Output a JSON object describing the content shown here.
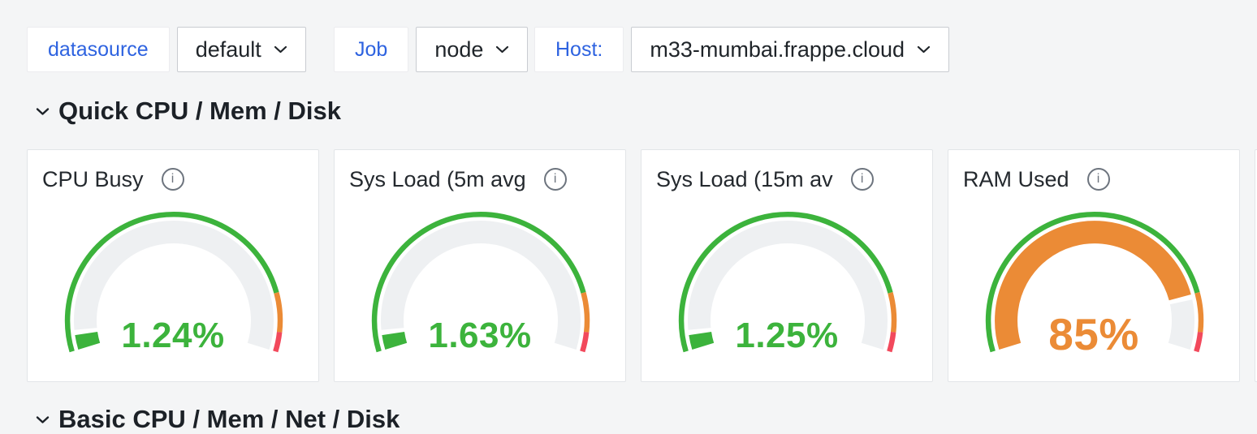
{
  "filters": [
    {
      "label": "datasource",
      "value": "default"
    },
    {
      "label": "Job",
      "value": "node"
    },
    {
      "label": "Host:",
      "value": "m33-mumbai.frappe.cloud"
    }
  ],
  "sections": {
    "quick": {
      "title": "Quick CPU / Mem / Disk"
    },
    "basic": {
      "title": "Basic CPU / Mem / Net / Disk"
    }
  },
  "panels": [
    {
      "title": "CPU Busy",
      "display": "1.24%",
      "value": 1.24,
      "min": 0,
      "max": 100,
      "unit": "%",
      "color": "green"
    },
    {
      "title": "Sys Load (5m avg",
      "display": "1.63%",
      "value": 1.63,
      "min": 0,
      "max": 100,
      "unit": "%",
      "color": "green"
    },
    {
      "title": "Sys Load (15m av",
      "display": "1.25%",
      "value": 1.25,
      "min": 0,
      "max": 100,
      "unit": "%",
      "color": "green"
    },
    {
      "title": "RAM Used",
      "display": "85%",
      "value": 85,
      "min": 0,
      "max": 100,
      "unit": "%",
      "color": "orange"
    }
  ],
  "gauge_thresholds": {
    "orange_at": 85,
    "red_at": 95
  },
  "colors": {
    "green": "#3cb33c",
    "orange": "#eb8b36",
    "red": "#f2495c",
    "track": "#eef0f2",
    "blue": "#2e63e0"
  },
  "chart_data": [
    {
      "type": "gauge",
      "title": "CPU Busy",
      "value": 1.24,
      "unit": "%",
      "min": 0,
      "max": 100,
      "thresholds": [
        {
          "from": 0,
          "color": "green"
        },
        {
          "from": 85,
          "color": "orange"
        },
        {
          "from": 95,
          "color": "red"
        }
      ]
    },
    {
      "type": "gauge",
      "title": "Sys Load (5m avg",
      "value": 1.63,
      "unit": "%",
      "min": 0,
      "max": 100,
      "thresholds": [
        {
          "from": 0,
          "color": "green"
        },
        {
          "from": 85,
          "color": "orange"
        },
        {
          "from": 95,
          "color": "red"
        }
      ]
    },
    {
      "type": "gauge",
      "title": "Sys Load (15m av",
      "value": 1.25,
      "unit": "%",
      "min": 0,
      "max": 100,
      "thresholds": [
        {
          "from": 0,
          "color": "green"
        },
        {
          "from": 85,
          "color": "orange"
        },
        {
          "from": 95,
          "color": "red"
        }
      ]
    },
    {
      "type": "gauge",
      "title": "RAM Used",
      "value": 85,
      "unit": "%",
      "min": 0,
      "max": 100,
      "thresholds": [
        {
          "from": 0,
          "color": "green"
        },
        {
          "from": 85,
          "color": "orange"
        },
        {
          "from": 95,
          "color": "red"
        }
      ]
    }
  ]
}
